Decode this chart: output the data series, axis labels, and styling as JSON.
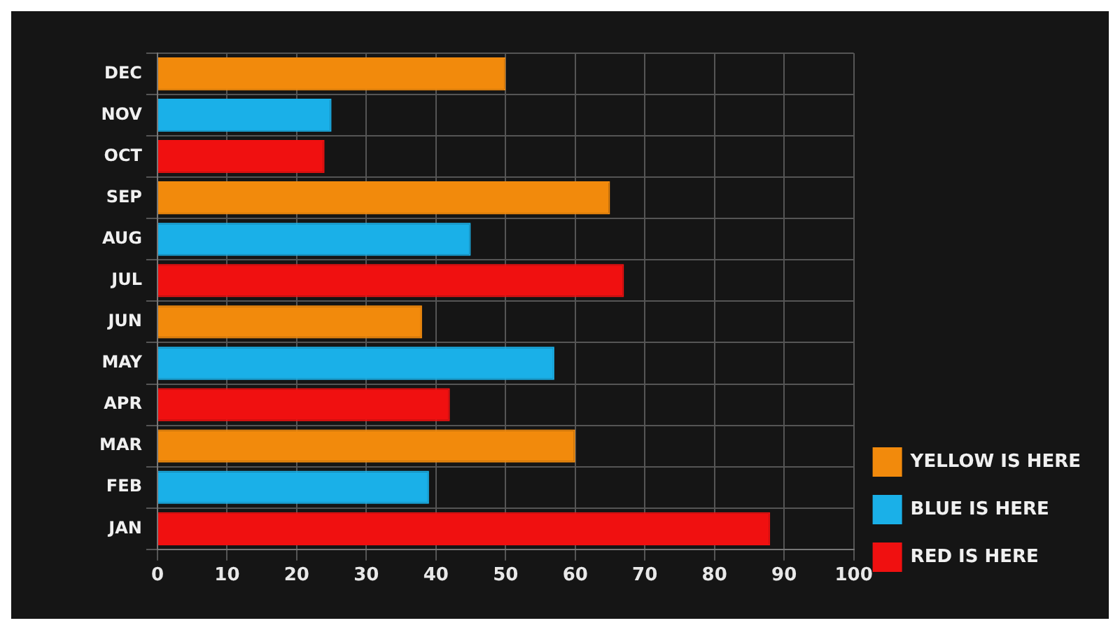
{
  "chart_data": {
    "type": "bar",
    "orientation": "horizontal",
    "categories": [
      "DEC",
      "NOV",
      "OCT",
      "SEP",
      "AUG",
      "JUL",
      "JUN",
      "MAY",
      "APR",
      "MAR",
      "FEB",
      "JAN"
    ],
    "series": [
      {
        "name": "YELLOW IS HERE",
        "color": "#f28a0c",
        "values": [
          50,
          null,
          null,
          65,
          null,
          null,
          38,
          null,
          null,
          60,
          null,
          null
        ]
      },
      {
        "name": "BLUE IS HERE",
        "color": "#1ab0e8",
        "values": [
          null,
          25,
          null,
          null,
          45,
          null,
          null,
          57,
          null,
          null,
          39,
          null
        ]
      },
      {
        "name": "RED IS HERE",
        "color": "#f01010",
        "values": [
          null,
          null,
          24,
          null,
          null,
          67,
          null,
          null,
          42,
          null,
          null,
          88
        ]
      }
    ],
    "xlim": [
      0,
      100
    ],
    "xticks": [
      0,
      10,
      20,
      30,
      40,
      50,
      60,
      70,
      80,
      90,
      100
    ],
    "grid": true,
    "legend": "bottom right"
  }
}
